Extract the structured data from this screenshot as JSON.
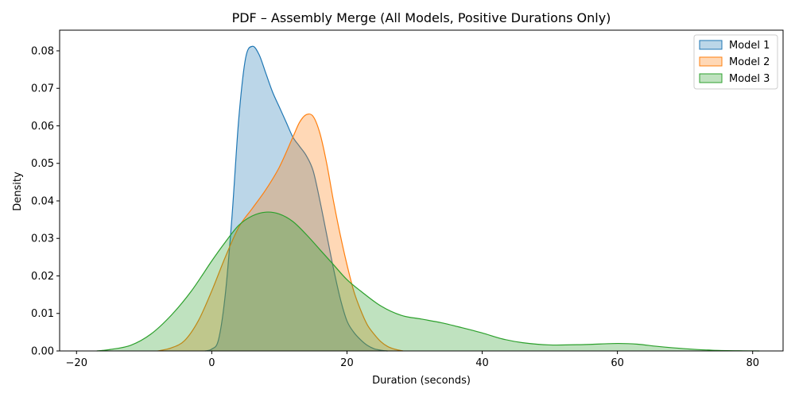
{
  "chart_data": {
    "type": "area",
    "title": "PDF – Assembly Merge (All Models, Positive Durations Only)",
    "xlabel": "Duration (seconds)",
    "ylabel": "Density",
    "xlim": [
      -22.5,
      84.5
    ],
    "ylim": [
      0,
      0.0855
    ],
    "x_ticks": [
      -20,
      0,
      20,
      40,
      60,
      80
    ],
    "y_ticks": [
      0.0,
      0.01,
      0.02,
      0.03,
      0.04,
      0.05,
      0.06,
      0.07,
      0.08
    ],
    "grid": false,
    "legend_position": "top-right",
    "series": [
      {
        "name": "Model 1",
        "color": "#1f77b4",
        "fill_opacity": 0.3,
        "points": [
          [
            -1,
            0
          ],
          [
            0,
            0.0005
          ],
          [
            1,
            0.003
          ],
          [
            2,
            0.015
          ],
          [
            3,
            0.036
          ],
          [
            4,
            0.062
          ],
          [
            5,
            0.078
          ],
          [
            6,
            0.0812
          ],
          [
            7,
            0.079
          ],
          [
            8,
            0.074
          ],
          [
            9,
            0.069
          ],
          [
            10,
            0.065
          ],
          [
            11,
            0.061
          ],
          [
            12,
            0.057
          ],
          [
            13,
            0.0545
          ],
          [
            14,
            0.052
          ],
          [
            15,
            0.048
          ],
          [
            16,
            0.04
          ],
          [
            17,
            0.031
          ],
          [
            18,
            0.022
          ],
          [
            19,
            0.014
          ],
          [
            20,
            0.008
          ],
          [
            21,
            0.005
          ],
          [
            22,
            0.003
          ],
          [
            23,
            0.0015
          ],
          [
            24,
            0.0006
          ],
          [
            25,
            0.0002
          ],
          [
            26,
            0
          ]
        ]
      },
      {
        "name": "Model 2",
        "color": "#ff7f0e",
        "fill_opacity": 0.3,
        "points": [
          [
            -8,
            0
          ],
          [
            -6,
            0.0008
          ],
          [
            -4,
            0.0028
          ],
          [
            -2,
            0.008
          ],
          [
            0,
            0.016
          ],
          [
            2,
            0.025
          ],
          [
            4,
            0.033
          ],
          [
            6,
            0.038
          ],
          [
            8,
            0.043
          ],
          [
            10,
            0.049
          ],
          [
            12,
            0.057
          ],
          [
            13,
            0.061
          ],
          [
            14,
            0.063
          ],
          [
            15,
            0.0625
          ],
          [
            16,
            0.058
          ],
          [
            17,
            0.05
          ],
          [
            18,
            0.04
          ],
          [
            19,
            0.031
          ],
          [
            20,
            0.023
          ],
          [
            21,
            0.016
          ],
          [
            22,
            0.011
          ],
          [
            23,
            0.007
          ],
          [
            24,
            0.0045
          ],
          [
            25,
            0.0025
          ],
          [
            26,
            0.0012
          ],
          [
            27,
            0.0005
          ],
          [
            28.3,
            0
          ]
        ]
      },
      {
        "name": "Model 3",
        "color": "#2ca02c",
        "fill_opacity": 0.3,
        "points": [
          [
            -17,
            0
          ],
          [
            -15,
            0.0004
          ],
          [
            -12,
            0.0015
          ],
          [
            -9,
            0.0045
          ],
          [
            -6,
            0.0095
          ],
          [
            -3,
            0.016
          ],
          [
            0,
            0.024
          ],
          [
            2,
            0.029
          ],
          [
            4,
            0.0335
          ],
          [
            6,
            0.036
          ],
          [
            8,
            0.037
          ],
          [
            10,
            0.0365
          ],
          [
            12,
            0.0345
          ],
          [
            14,
            0.031
          ],
          [
            16,
            0.027
          ],
          [
            18,
            0.023
          ],
          [
            20,
            0.019
          ],
          [
            22,
            0.016
          ],
          [
            25,
            0.012
          ],
          [
            28,
            0.0095
          ],
          [
            31,
            0.0085
          ],
          [
            34,
            0.0075
          ],
          [
            37,
            0.0062
          ],
          [
            40,
            0.0048
          ],
          [
            43,
            0.0032
          ],
          [
            46,
            0.0022
          ],
          [
            50,
            0.0016
          ],
          [
            55,
            0.0017
          ],
          [
            60,
            0.002
          ],
          [
            63,
            0.0018
          ],
          [
            66,
            0.0012
          ],
          [
            70,
            0.0006
          ],
          [
            74,
            0.0002
          ],
          [
            78,
            5e-05
          ],
          [
            81,
            0
          ]
        ]
      }
    ]
  }
}
